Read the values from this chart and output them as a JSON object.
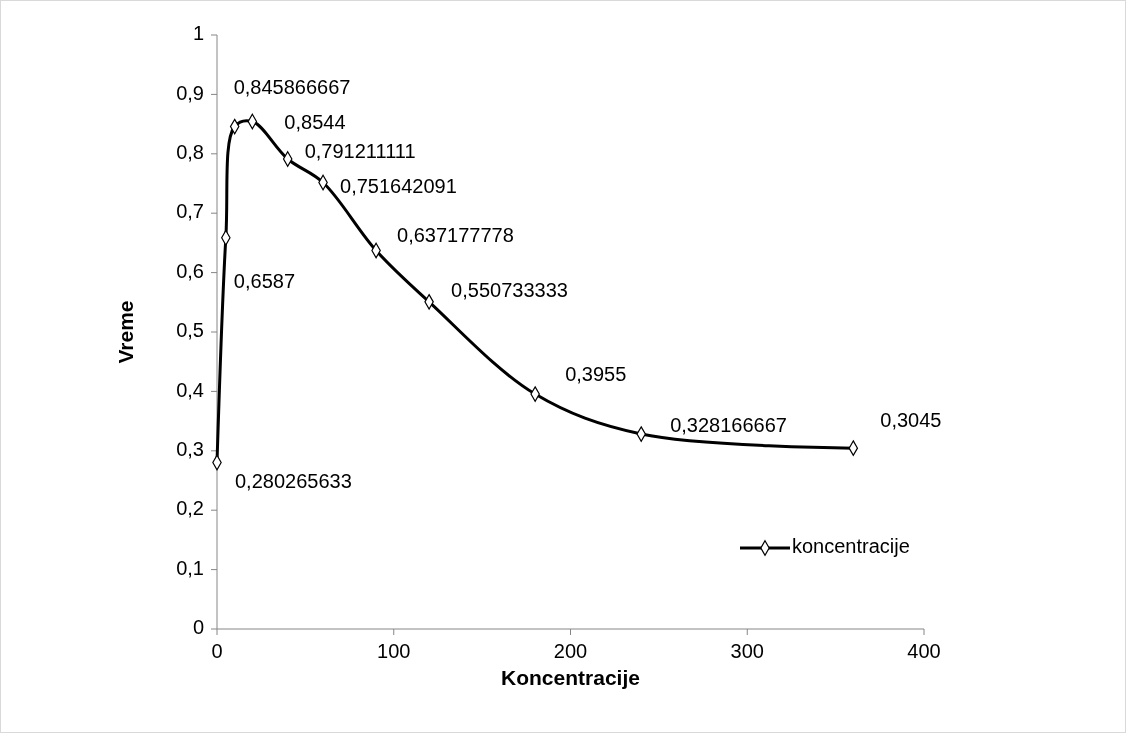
{
  "chart_data": {
    "type": "line",
    "xlabel": "Koncentracije",
    "ylabel": "Vreme",
    "x": [
      0,
      5,
      10,
      20,
      40,
      60,
      90,
      120,
      180,
      240,
      360
    ],
    "series": [
      {
        "name": "koncentracije",
        "color": "#000000",
        "values": [
          0.280265633,
          0.6587,
          0.845866667,
          0.8544,
          0.791211111,
          0.751642091,
          0.637177778,
          0.550733333,
          0.3955,
          0.328166667,
          0.3045
        ],
        "value_labels": [
          "0,280265633",
          "0,6587",
          "0,845866667",
          "0,8544",
          "0,791211111",
          "0,751642091",
          "0,637177778",
          "0,550733333",
          "0,3955",
          "0,328166667",
          "0,3045"
        ]
      }
    ],
    "xlim": [
      0,
      400
    ],
    "xticks": [
      0,
      100,
      200,
      300,
      400
    ],
    "ylim": [
      0,
      1
    ],
    "yticks": [
      0,
      {
        "value": 0.1,
        "label": "0,1"
      },
      {
        "value": 0.2,
        "label": "0,2"
      },
      {
        "value": 0.3,
        "label": "0,3"
      },
      {
        "value": 0.4,
        "label": "0,4"
      },
      {
        "value": 0.5,
        "label": "0,5"
      },
      {
        "value": 0.6,
        "label": "0,6"
      },
      {
        "value": 0.7,
        "label": "0,7"
      },
      {
        "value": 0.8,
        "label": "0,8"
      },
      {
        "value": 0.9,
        "label": "0,9"
      },
      1
    ],
    "grid": false,
    "legend": "right",
    "marker": "diamond",
    "line_style": "solid"
  }
}
